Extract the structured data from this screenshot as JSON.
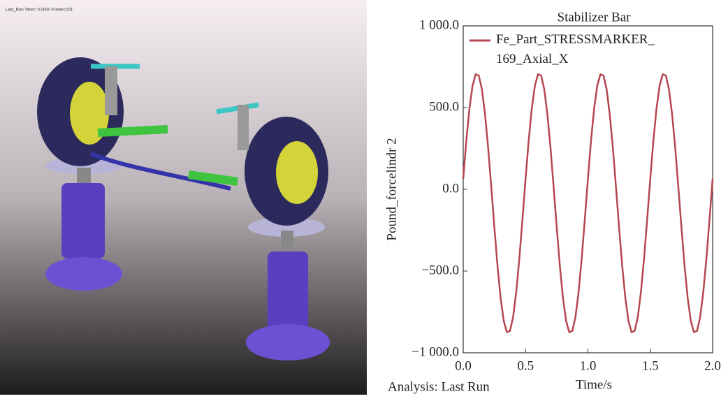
{
  "viewport_caption": "Last_Run  Time= 0.0000  Frame=001",
  "chart_data": {
    "type": "line",
    "title": "Stabilizer Bar",
    "xlabel": "Time/s",
    "ylabel": "Pound_forcelindr 2",
    "footer": "Analysis: Last  Run",
    "x": [
      0,
      0.025,
      0.05,
      0.075,
      0.1,
      0.125,
      0.15,
      0.175,
      0.2,
      0.225,
      0.25,
      0.275,
      0.3,
      0.325,
      0.35,
      0.375,
      0.4,
      0.425,
      0.45,
      0.475,
      0.5,
      0.525,
      0.55,
      0.575,
      0.6,
      0.625,
      0.65,
      0.675,
      0.7,
      0.725,
      0.75,
      0.775,
      0.8,
      0.825,
      0.85,
      0.875,
      0.9,
      0.925,
      0.95,
      0.975,
      1.0,
      1.025,
      1.05,
      1.075,
      1.1,
      1.125,
      1.15,
      1.175,
      1.2,
      1.225,
      1.25,
      1.275,
      1.3,
      1.325,
      1.35,
      1.375,
      1.4,
      1.425,
      1.45,
      1.475,
      1.5,
      1.525,
      1.55,
      1.575,
      1.6,
      1.625,
      1.65,
      1.675,
      1.7,
      1.725,
      1.75,
      1.775,
      1.8,
      1.825,
      1.85,
      1.875,
      1.9,
      1.925,
      1.95,
      1.975,
      2.0
    ],
    "series": [
      {
        "name": "Fe_Part_STRESSMARKER_169_Axial_X",
        "color": "#b5474f",
        "values": [
          64,
          298,
          495,
          634,
          704,
          696,
          612,
          459,
          254,
          15,
          -234,
          -468,
          -665,
          -804,
          -874,
          -866,
          -782,
          -629,
          -424,
          -185,
          64,
          298,
          495,
          634,
          704,
          696,
          612,
          459,
          254,
          15,
          -234,
          -468,
          -665,
          -804,
          -874,
          -866,
          -782,
          -629,
          -424,
          -185,
          64,
          298,
          495,
          634,
          704,
          696,
          612,
          459,
          254,
          15,
          -234,
          -468,
          -665,
          -804,
          -874,
          -866,
          -782,
          -629,
          -424,
          -185,
          64,
          298,
          495,
          634,
          704,
          696,
          612,
          459,
          254,
          15,
          -234,
          -468,
          -665,
          -804,
          -874,
          -866,
          -782,
          -629,
          -424,
          -185,
          64
        ]
      }
    ],
    "xlim": [
      0,
      2.0
    ],
    "xticks": [
      {
        "value": 0,
        "label": "0.0"
      },
      {
        "value": 0.5,
        "label": "0.5"
      },
      {
        "value": 1.0,
        "label": "1.0"
      },
      {
        "value": 1.5,
        "label": "1.5"
      },
      {
        "value": 2.0,
        "label": "2.0"
      }
    ],
    "ylim": [
      -1000,
      1000
    ],
    "yticks": [
      {
        "value": 1000,
        "label": "1 000.0"
      },
      {
        "value": 500,
        "label": "500.0"
      },
      {
        "value": 0,
        "label": "0.0"
      },
      {
        "value": -500,
        "label": "−500.0"
      },
      {
        "value": -1000,
        "label": "−1 000.0"
      }
    ],
    "grid": false,
    "legend": "upper-left"
  }
}
